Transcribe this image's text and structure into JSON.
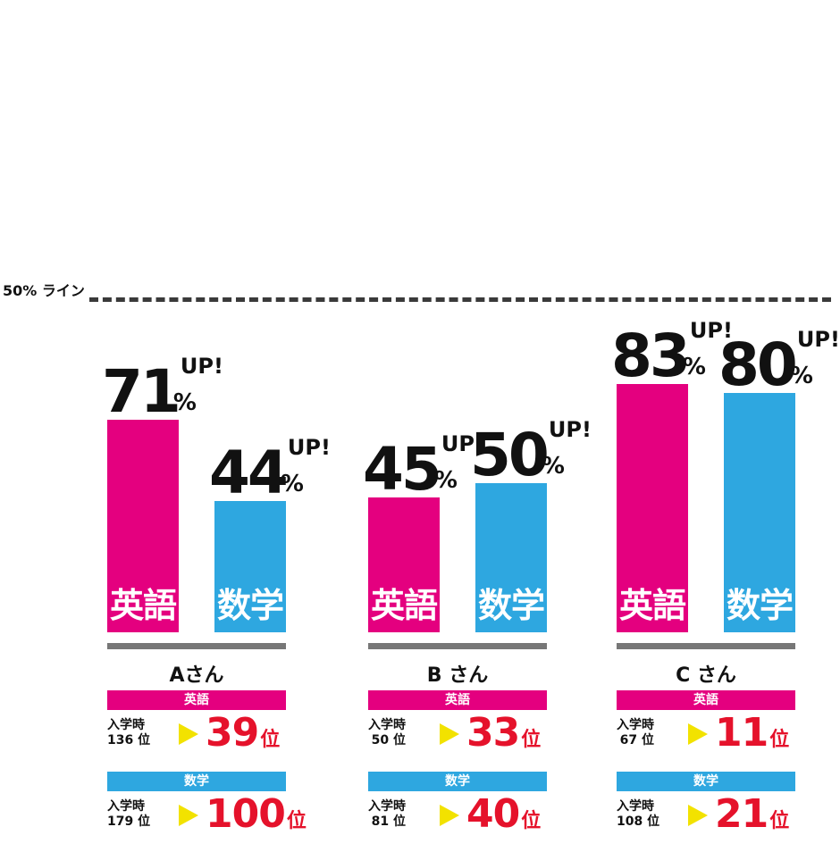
{
  "fifty_line_label": "50% ライン",
  "pct_symbol": "%",
  "up_text": "UP!",
  "colors": {
    "english": "#e4007f",
    "math": "#2ea7e0",
    "rank": "#e5122b",
    "arrow": "#f2e200"
  },
  "chart_data": {
    "type": "bar",
    "categories": [
      "Aさん",
      "Bさん",
      "Cさん"
    ],
    "series": [
      {
        "name": "英語",
        "values": [
          71,
          45,
          83
        ]
      },
      {
        "name": "数学",
        "values": [
          44,
          50,
          80
        ]
      }
    ],
    "reference_line": {
      "value": 50,
      "label": "50% ライン"
    },
    "value_suffix": "% UP!",
    "ylim": [
      0,
      85
    ]
  },
  "ranks": [
    {
      "person": "Aさん",
      "english": {
        "header": "英語",
        "entry_label": "入学時",
        "entry_rank": "136 位",
        "now_rank": "39",
        "unit": "位"
      },
      "math": {
        "header": "数学",
        "entry_label": "入学時",
        "entry_rank": "179 位",
        "now_rank": "100",
        "unit": "位"
      }
    },
    {
      "person": "B さん",
      "english": {
        "header": "英語",
        "entry_label": "入学時",
        "entry_rank": "50 位",
        "now_rank": "33",
        "unit": "位"
      },
      "math": {
        "header": "数学",
        "entry_label": "入学時",
        "entry_rank": "81 位",
        "now_rank": "40",
        "unit": "位"
      }
    },
    {
      "person": "C さん",
      "english": {
        "header": "英語",
        "entry_label": "入学時",
        "entry_rank": "67 位",
        "now_rank": "11",
        "unit": "位"
      },
      "math": {
        "header": "数学",
        "entry_label": "入学時",
        "entry_rank": "108 位",
        "now_rank": "21",
        "unit": "位"
      }
    }
  ]
}
